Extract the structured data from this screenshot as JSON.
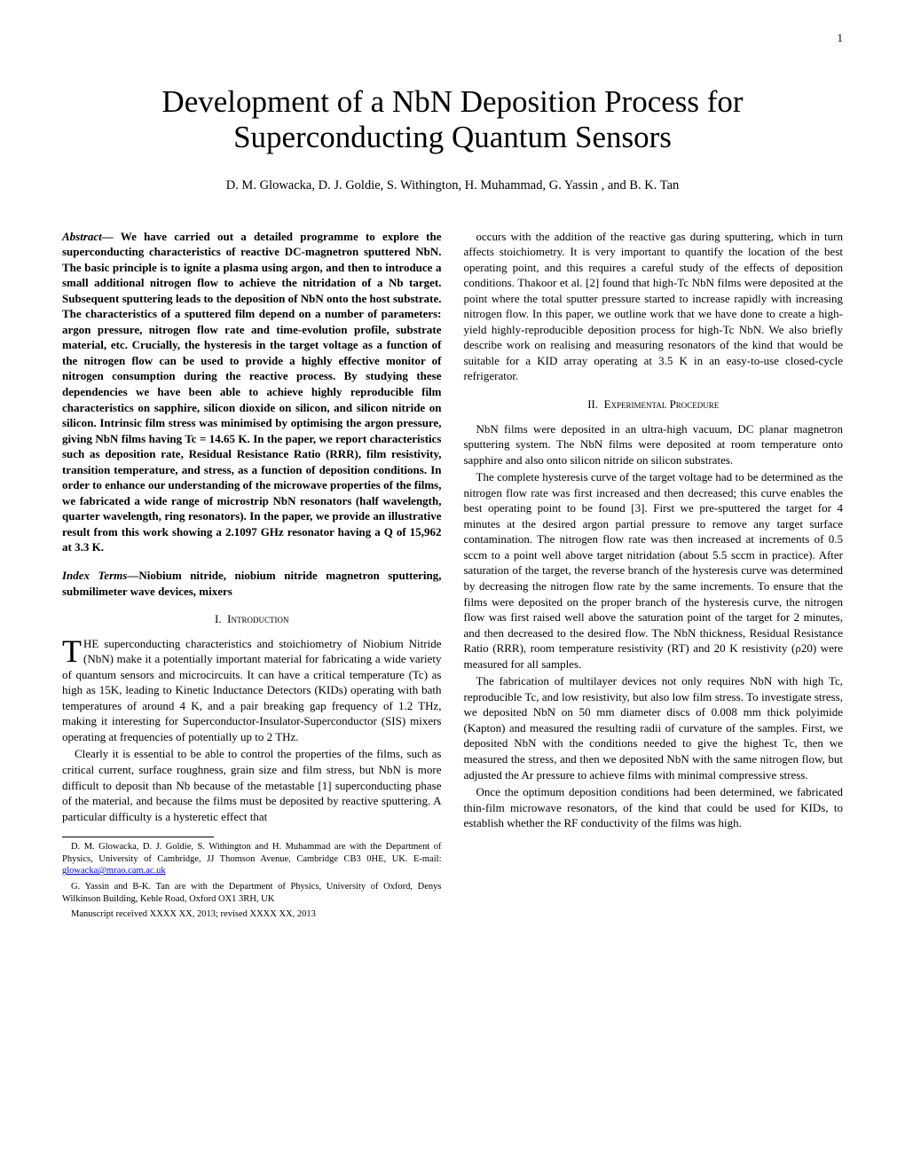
{
  "page_number": "1",
  "title": "Development of a NbN Deposition Process for Superconducting Quantum Sensors",
  "authors": "D. M. Glowacka, D. J. Goldie, S. Withington, H. Muhammad, G. Yassin , and B. K. Tan",
  "abstract": {
    "label": "Abstract",
    "text": "— We have carried out a detailed programme to explore the superconducting characteristics of reactive DC-magnetron sputtered NbN. The basic principle is to ignite a plasma using argon, and then to introduce a small additional nitrogen flow to achieve the nitridation of a Nb target. Subsequent sputtering leads to the deposition of NbN onto the host substrate. The characteristics of a sputtered film depend on a number of parameters: argon pressure, nitrogen flow rate and time-evolution profile, substrate material, etc. Crucially, the hysteresis in the target voltage as a function of the nitrogen flow can be used to provide a highly effective monitor of nitrogen consumption during the reactive process. By studying these dependencies we have been able to achieve highly reproducible film characteristics on sapphire, silicon dioxide on silicon, and silicon nitride on silicon. Intrinsic film stress was minimised by optimising the argon pressure, giving NbN films having Tc = 14.65 K. In the paper, we report characteristics such as deposition rate, Residual Resistance Ratio (RRR), film resistivity, transition temperature, and stress, as a function of deposition conditions. In order to enhance our understanding of the microwave properties of the films, we fabricated a wide range of microstrip NbN resonators (half wavelength, quarter wavelength, ring resonators). In the paper, we provide an illustrative result from this work showing a 2.1097 GHz resonator having a Q of 15,962 at 3.3 K."
  },
  "index_terms": {
    "label": "Index Terms",
    "text": "—Niobium nitride, niobium nitride magnetron sputtering, submilimeter wave devices, mixers"
  },
  "section1": {
    "number": "I.",
    "title": "Introduction",
    "dropcap": "T",
    "para1": "HE superconducting characteristics and stoichiometry of Niobium Nitride (NbN) make it a potentially important material for fabricating a wide variety of quantum sensors and microcircuits. It can have a critical temperature (Tc) as high as 15K, leading to Kinetic Inductance Detectors (KIDs) operating with bath temperatures of around 4 K, and a pair breaking gap frequency of 1.2 THz, making it interesting for Superconductor-Insulator-Superconductor (SIS) mixers operating at frequencies of potentially up to 2 THz.",
    "para2": "Clearly it is essential to be able to control the properties of the films, such as critical current, surface roughness, grain size and film stress, but NbN is more difficult to deposit than Nb because of the metastable [1] superconducting phase of the material, and because the films must be deposited by reactive sputtering. A particular difficulty is a hysteretic effect that",
    "para3_col2": "occurs with the addition of the reactive gas during sputtering, which in turn affects stoichiometry. It is very important to quantify the location of the best operating point, and this requires a careful study of the effects of deposition conditions. Thakoor et al. [2] found that high-Tc NbN films were deposited at the point where the total sputter pressure started to increase rapidly with increasing nitrogen flow. In this paper, we outline work that we have done to create a high-yield highly-reproducible deposition process for high-Tc NbN. We also briefly describe work on realising and measuring resonators of the kind that would be suitable for a KID array operating at 3.5 K in an easy-to-use closed-cycle refrigerator."
  },
  "section2": {
    "number": "II.",
    "title": "Experimental Procedure",
    "para1": "NbN films were deposited in an ultra-high vacuum, DC planar magnetron sputtering system. The NbN films were deposited at room temperature onto sapphire and also onto silicon nitride on silicon substrates.",
    "para2": "The complete hysteresis curve of the target voltage had to be determined as the nitrogen flow rate was first increased and then decreased; this curve enables the best operating point to be found [3]. First we pre-sputtered the target for 4 minutes at the desired argon partial pressure to remove any target surface contamination. The nitrogen flow rate was then increased at increments of 0.5 sccm to a point well above target nitridation (about 5.5 sccm in practice). After saturation of the target, the reverse branch of the hysteresis curve was determined by decreasing the nitrogen flow rate by the same increments. To ensure that the films were deposited on the proper branch of the hysteresis curve, the nitrogen flow was first raised well above the saturation point of the target for 2 minutes, and then decreased to the desired flow. The NbN thickness, Residual Resistance Ratio (RRR), room temperature resistivity (RT) and 20 K resistivity (ρ20) were measured for all samples.",
    "para3": "The fabrication of multilayer devices not only requires NbN with high Tc, reproducible Tc, and low resistivity, but also low film stress. To investigate stress, we deposited NbN on 50 mm diameter discs of 0.008 mm thick polyimide (Kapton) and measured the resulting radii of curvature of the samples. First, we deposited NbN with the conditions needed to give the highest Tc, then we measured the stress, and then we deposited NbN with the same nitrogen flow, but adjusted the Ar pressure to achieve films with minimal compressive stress.",
    "para4": "Once the optimum deposition conditions had been determined, we fabricated thin-film microwave resonators, of the kind that could be used for KIDs, to establish whether the RF conductivity of the films was high."
  },
  "footnotes": {
    "note1_text": "D. M. Glowacka, D. J. Goldie, S. Withington and H. Muhammad are with the Department of Physics, University of Cambridge, JJ Thomson Avenue, Cambridge CB3 0HE, UK. E-mail: ",
    "note1_email": "glowacka@mrao.cam.ac.uk",
    "note2": "G. Yassin and B-K. Tan are with the Department of Physics, University of Oxford, Denys Wilkinson Building, Keble Road, Oxford OX1 3RH, UK",
    "note3": "Manuscript received XXXX XX, 2013; revised XXXX XX, 2013"
  }
}
